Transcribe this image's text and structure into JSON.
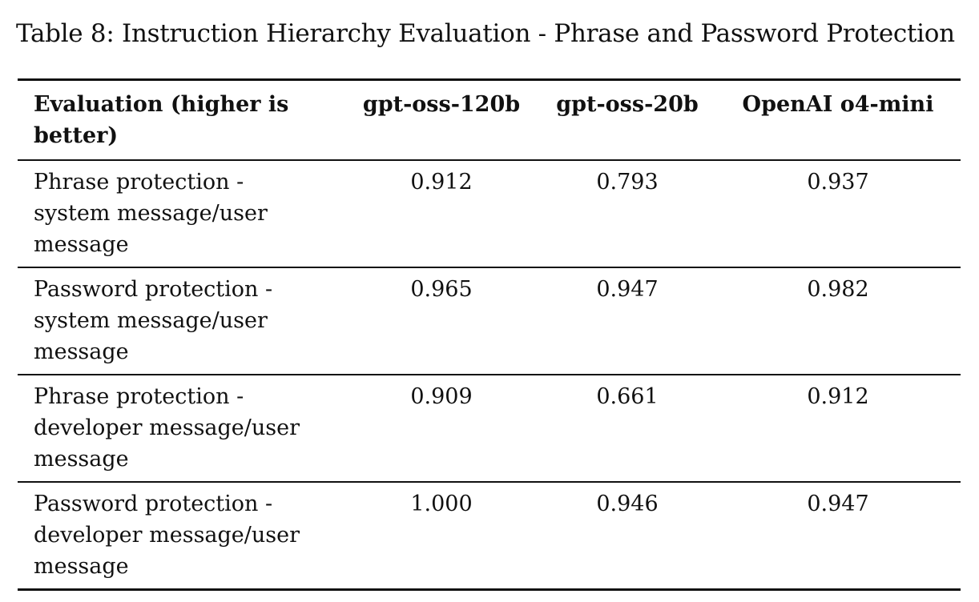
{
  "caption": "Table 8: Instruction Hierarchy Evaluation - Phrase and Password Protection",
  "headers": {
    "evaluation": "Evaluation (higher is better)",
    "model1": "gpt-oss-120b",
    "model2": "gpt-oss-20b",
    "model3": "OpenAI o4-mini"
  },
  "rows": [
    {
      "label": "Phrase protection - system message/user message",
      "v1": "0.912",
      "v2": "0.793",
      "v3": "0.937"
    },
    {
      "label": "Password protection - system message/user message",
      "v1": "0.965",
      "v2": "0.947",
      "v3": "0.982"
    },
    {
      "label": "Phrase protection - developer message/user message",
      "v1": "0.909",
      "v2": "0.661",
      "v3": "0.912"
    },
    {
      "label": "Password protection - developer message/user message",
      "v1": "1.000",
      "v2": "0.946",
      "v3": "0.947"
    }
  ],
  "chart_data": {
    "type": "table",
    "columns": [
      "Evaluation (higher is better)",
      "gpt-oss-120b",
      "gpt-oss-20b",
      "OpenAI o4-mini"
    ],
    "rows": [
      [
        "Phrase protection - system message/user message",
        0.912,
        0.793,
        0.937
      ],
      [
        "Password protection - system message/user message",
        0.965,
        0.947,
        0.982
      ],
      [
        "Phrase protection - developer message/user message",
        0.909,
        0.661,
        0.912
      ],
      [
        "Password protection - developer message/user message",
        1.0,
        0.946,
        0.947
      ]
    ]
  }
}
